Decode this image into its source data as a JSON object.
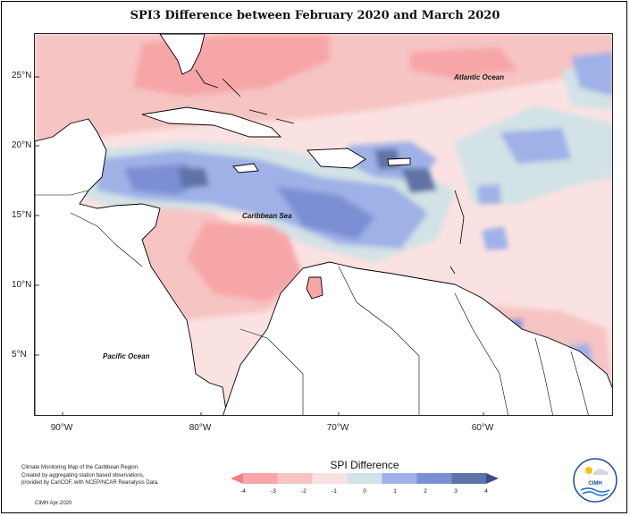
{
  "title": "SPI3 Difference between February 2020 and March 2020",
  "map": {
    "latitude_labels": [
      "25°N",
      "20°N",
      "15°N",
      "10°N",
      "5°N"
    ],
    "longitude_labels": [
      "90°W",
      "80°W",
      "70°W",
      "60°W"
    ],
    "region_labels": {
      "atlantic": "Atlantic Ocean",
      "caribbean": "Caribbean Sea",
      "pacific": "Pacific Ocean"
    }
  },
  "legend": {
    "title": "SPI Difference",
    "ticks": [
      "-4",
      "-3",
      "-2",
      "-1",
      "0",
      "1",
      "2",
      "3",
      "4"
    ],
    "colors": [
      "#f47f85",
      "#f7a6a8",
      "#f5c4c3",
      "#fbe2e2",
      "#d2e2e6",
      "#9fb1e6",
      "#7b8fd4",
      "#5e73a6",
      "#3e4a8c"
    ]
  },
  "footnote": {
    "lines": [
      "Climate Monitoring Map of the Caribbean Region.",
      "Created by aggregating station based observations,",
      "provided by CariCOF, with NCEP/NCAR Reanalysis Data."
    ],
    "credit": "CIMH Apr-2020"
  },
  "logo": {
    "text": "CIMH"
  }
}
